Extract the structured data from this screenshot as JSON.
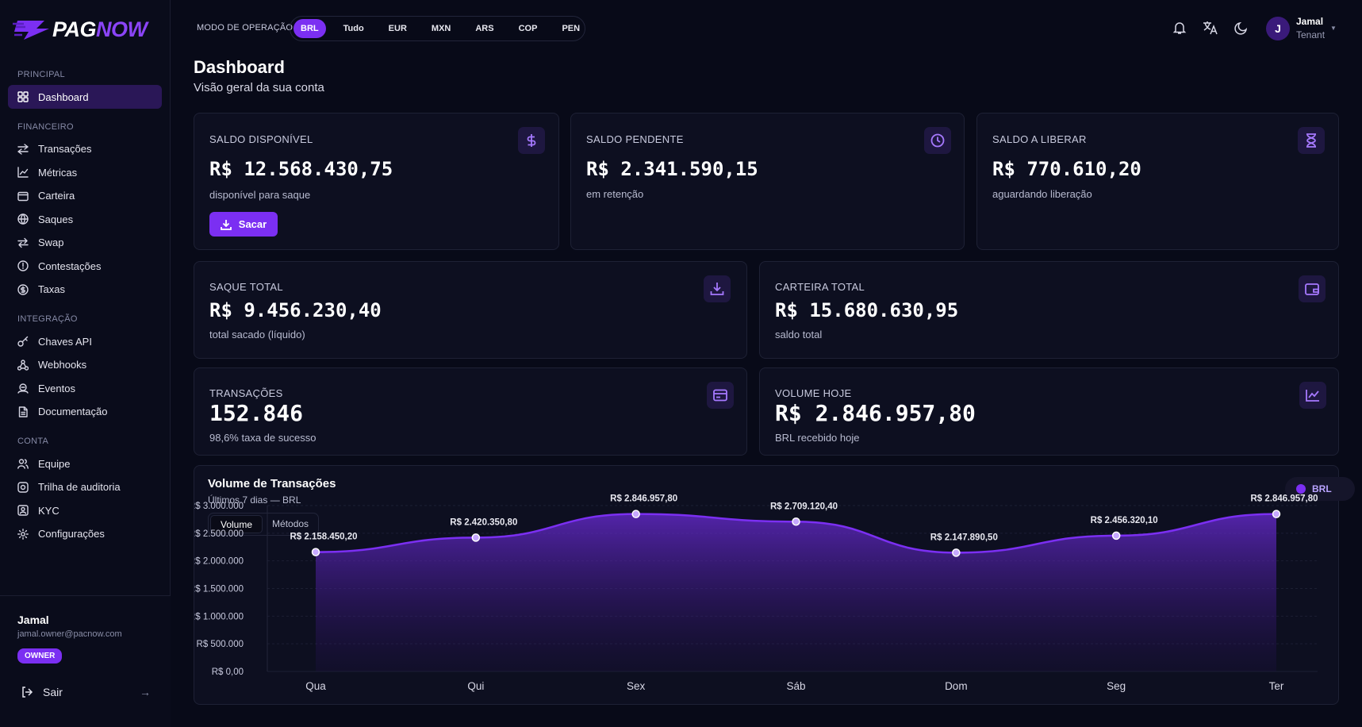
{
  "brand": {
    "part1": "PAG",
    "part2": "NOW"
  },
  "sidebar": {
    "sections": [
      {
        "title": "PRINCIPAL",
        "items": [
          {
            "label": "Dashboard",
            "icon": "dashboard-icon",
            "active": true
          }
        ]
      },
      {
        "title": "FINANCEIRO",
        "items": [
          {
            "label": "Transações",
            "icon": "transactions-icon"
          },
          {
            "label": "Métricas",
            "icon": "metrics-icon"
          },
          {
            "label": "Carteira",
            "icon": "wallet-icon"
          },
          {
            "label": "Saques",
            "icon": "withdraw-icon"
          },
          {
            "label": "Swap",
            "icon": "swap-icon"
          },
          {
            "label": "Contestações",
            "icon": "dispute-icon"
          },
          {
            "label": "Taxas",
            "icon": "fees-icon"
          }
        ]
      },
      {
        "title": "INTEGRAÇÃO",
        "items": [
          {
            "label": "Chaves API",
            "icon": "key-icon"
          },
          {
            "label": "Webhooks",
            "icon": "webhook-icon"
          },
          {
            "label": "Eventos",
            "icon": "events-icon"
          },
          {
            "label": "Documentação",
            "icon": "docs-icon"
          }
        ]
      },
      {
        "title": "CONTA",
        "items": [
          {
            "label": "Equipe",
            "icon": "team-icon"
          },
          {
            "label": "Trilha de auditoria",
            "icon": "audit-icon"
          },
          {
            "label": "KYC",
            "icon": "kyc-icon"
          },
          {
            "label": "Configurações",
            "icon": "settings-icon"
          }
        ]
      }
    ],
    "footer": {
      "name": "Jamal",
      "email": "jamal.owner@pacnow.com",
      "role": "OWNER",
      "logout": "Sair"
    }
  },
  "topbar": {
    "mode_label": "MODO DE OPERAÇÃO",
    "currencies": [
      "BRL",
      "Tudo",
      "EUR",
      "MXN",
      "ARS",
      "COP",
      "PEN"
    ],
    "active_currency": "BRL",
    "user": {
      "initial": "J",
      "name": "Jamal",
      "role": "Tenant"
    }
  },
  "page": {
    "title": "Dashboard",
    "subtitle": "Visão geral da sua conta"
  },
  "cards": {
    "saldo_disponivel": {
      "label": "SALDO DISPONÍVEL",
      "value": "R$ 12.568.430,75",
      "sub": "disponível para saque",
      "button": "Sacar"
    },
    "saldo_pendente": {
      "label": "SALDO PENDENTE",
      "value": "R$ 2.341.590,15",
      "sub": "em retenção"
    },
    "saldo_liberar": {
      "label": "SALDO A LIBERAR",
      "value": "R$ 770.610,20",
      "sub": "aguardando liberação"
    },
    "saque_total": {
      "label": "SAQUE TOTAL",
      "value": "R$ 9.456.230,40",
      "sub": "total sacado (líquido)"
    },
    "carteira_total": {
      "label": "CARTEIRA TOTAL",
      "value": "R$ 15.680.630,95",
      "sub": "saldo total"
    },
    "transacoes": {
      "label": "TRANSAÇÕES",
      "value": "152.846",
      "sub": "98,6% taxa de sucesso"
    },
    "volume_hoje": {
      "label": "VOLUME HOJE",
      "value": "R$ 2.846.957,80",
      "sub": "BRL recebido hoje"
    }
  },
  "chart_panel": {
    "title": "Volume de Transações",
    "subtitle": "Últimos 7 dias — BRL",
    "tabs": [
      "Volume",
      "Métodos"
    ],
    "legend": "BRL"
  },
  "colors": {
    "accent": "#7b2ff2",
    "background": "#080a18",
    "card": "#0d0f20"
  },
  "chart_data": {
    "type": "area",
    "categories": [
      "Qua",
      "Qui",
      "Sex",
      "Sáb",
      "Dom",
      "Seg",
      "Ter"
    ],
    "series": [
      {
        "name": "BRL",
        "values": [
          2158450.2,
          2420350.8,
          2846957.8,
          2709120.4,
          2147890.5,
          2456320.1,
          2846957.8
        ],
        "labels": [
          "R$ 2.158.450,20",
          "R$ 2.420.350,80",
          "R$ 2.846.957,80",
          "R$ 2.709.120,40",
          "R$ 2.147.890,50",
          "R$ 2.456.320,10",
          "R$ 2.846.957,80"
        ]
      }
    ],
    "yticks": [
      0,
      500000,
      1000000,
      1500000,
      2000000,
      2500000,
      3000000
    ],
    "ytick_labels": [
      "R$ 0,00",
      "R$ 500.000",
      "R$ 1.000.000",
      "R$ 1.500.000",
      "R$ 2.000.000",
      "R$ 2.500.000",
      "R$ 3.000.000"
    ],
    "ylim": [
      0,
      3000000
    ],
    "grid": true,
    "legend_position": "top-right"
  }
}
